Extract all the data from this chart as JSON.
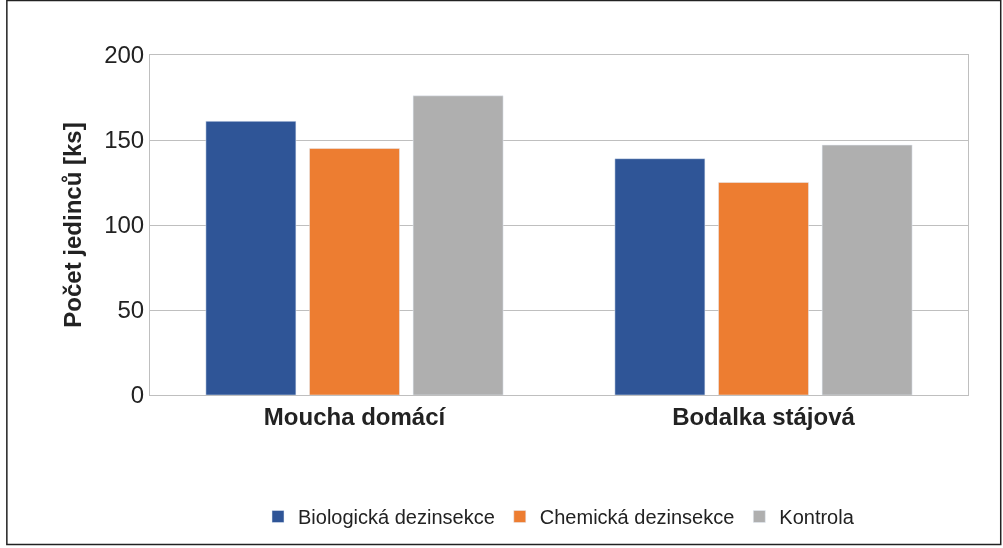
{
  "chart_data": {
    "type": "bar",
    "ylabel": "Počet jedinců [ks]",
    "categories": [
      "Moucha domácí",
      "Bodalka stájová"
    ],
    "series": [
      {
        "name": "Biologická dezinsekce",
        "color": "#2f5597",
        "values": [
          161,
          139
        ]
      },
      {
        "name": "Chemická dezinsekce",
        "color": "#ed7d31",
        "values": [
          145,
          125
        ]
      },
      {
        "name": "Kontrola",
        "color": "#afafaf",
        "values": [
          176,
          147
        ]
      }
    ],
    "ylim": [
      0,
      200
    ],
    "yticks": [
      0,
      50,
      100,
      150,
      200
    ],
    "grid": "y",
    "legend": "bottom"
  }
}
